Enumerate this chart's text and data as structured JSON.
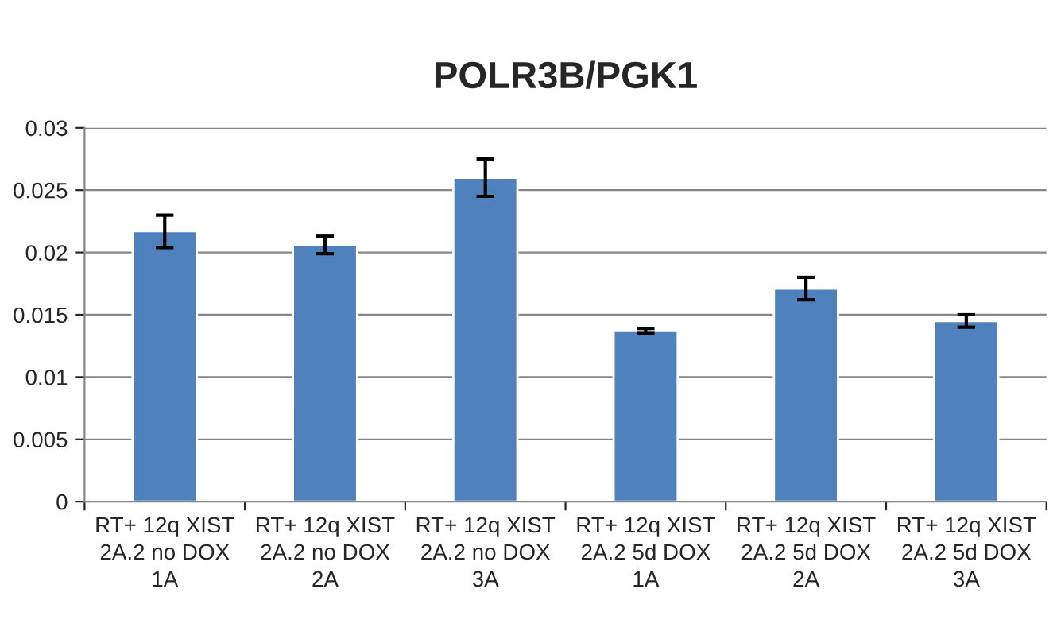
{
  "chart_data": {
    "type": "bar",
    "title": "POLR3B/PGK1",
    "categories": [
      "RT+ 12q XIST 2A.2 no DOX 1A",
      "RT+ 12q XIST 2A.2 no DOX 2A",
      "RT+ 12q XIST 2A.2 no DOX 3A",
      "RT+ 12q XIST 2A.2 5d DOX 1A",
      "RT+ 12q XIST 2A.2 5d DOX 2A",
      "RT+ 12q XIST 2A.2 5d DOX 3A"
    ],
    "values": [
      0.0217,
      0.0206,
      0.026,
      0.0137,
      0.0171,
      0.0145
    ],
    "errors": [
      0.0013,
      0.0007,
      0.0015,
      0.0002,
      0.0009,
      0.0005
    ],
    "color": "#4f81bd",
    "ylim": [
      0,
      0.03
    ],
    "yticks": [
      {
        "value": 0,
        "label": "0"
      },
      0.005,
      0.01,
      0.015,
      0.02,
      0.025,
      0.03
    ],
    "grid": "y",
    "legend": false
  }
}
